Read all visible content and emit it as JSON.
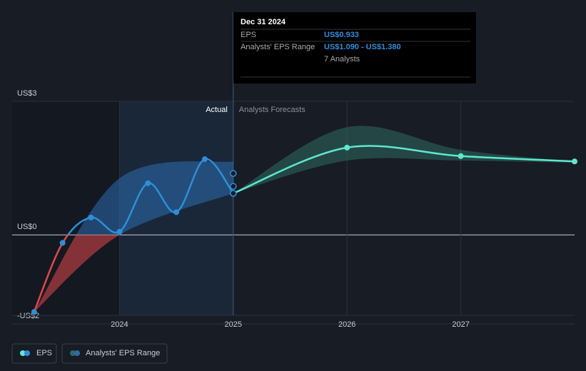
{
  "chart_data": {
    "type": "line",
    "xlim": [
      2023.0,
      2028.0
    ],
    "xticks": [
      2024,
      2025,
      2026,
      2027
    ],
    "ylim": [
      -2,
      3
    ],
    "yticks": [
      {
        "value": 3,
        "label": "US$3"
      },
      {
        "value": 0,
        "label": "US$0"
      },
      {
        "value": -2,
        "label": "-US$2"
      }
    ],
    "region_labels": [
      "Actual",
      "Analysts Forecasts"
    ],
    "divider_x": 2025,
    "series": [
      {
        "name": "EPS",
        "color": "#2b8fdb",
        "negative_color": "#e0484a",
        "x": [
          2023.25,
          2023.5,
          2023.75,
          2024.0,
          2024.25,
          2024.5,
          2024.75,
          2025.0
        ],
        "values": [
          -1.73,
          -0.18,
          0.39,
          0.07,
          1.16,
          0.51,
          1.7,
          0.933
        ]
      }
    ],
    "forecast": {
      "color": "#5ee8d0",
      "x": [
        2025,
        2026,
        2027,
        2028
      ],
      "values": [
        0.933,
        1.96,
        1.77,
        1.65
      ]
    },
    "actual_range": {
      "color": "#2b6cb0",
      "x": [
        2023.25,
        2024,
        2025
      ],
      "low": [
        -1.73,
        0,
        0.933
      ],
      "high": [
        -1.73,
        1.27,
        1.65
      ]
    },
    "range": {
      "name": "Analysts' EPS Range",
      "color": "#2f6b62",
      "x": [
        2025,
        2026,
        2027,
        2028
      ],
      "low": [
        0.933,
        1.67,
        1.67,
        1.62
      ],
      "high": [
        0.933,
        2.42,
        1.91,
        1.65
      ]
    },
    "range_points": {
      "x": 2025,
      "values": [
        1.09,
        1.38
      ]
    },
    "tooltip": {
      "date": "Dec 31 2024",
      "eps_label": "EPS",
      "eps_value": "US$0.933",
      "range_label": "Analysts' EPS Range",
      "range_value": "US$1.090 - US$1.380",
      "analysts": "7 Analysts"
    }
  }
}
